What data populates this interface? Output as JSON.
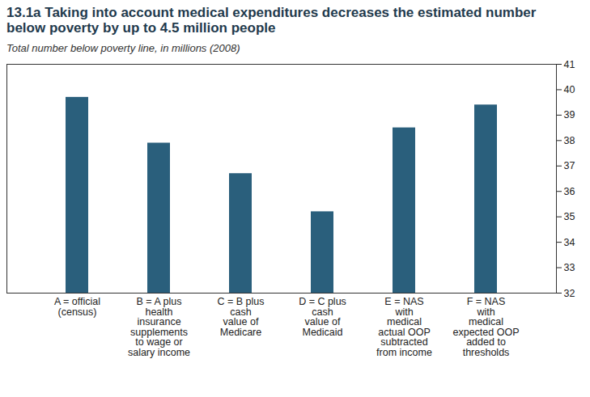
{
  "chart_data": {
    "type": "bar",
    "title": "13.1a Taking into account medical expenditures decreases the estimated number below poverty by up to 4.5 million people",
    "subtitle": "Total number below poverty line, in millions (2008)",
    "categories": [
      "A = official\n(census)",
      "B = A plus\nhealth\ninsurance\nsupplements\nto wage or\nsalary income",
      "C = B plus\ncash\nvalue of\nMedicare",
      "D = C plus\ncash\nvalue of\nMedicaid",
      "E = NAS\nwith\nmedical\nactual OOP\nsubtracted\nfrom income",
      "F = NAS\nwith\nmedical\nexpected OOP\nadded to\nthresholds"
    ],
    "values": [
      39.7,
      37.9,
      36.7,
      35.2,
      38.5,
      39.4
    ],
    "color": "#2a5f7c",
    "ylim": [
      32,
      41
    ],
    "yticks": [
      32,
      33,
      34,
      35,
      36,
      37,
      38,
      39,
      40,
      41
    ],
    "grid": false
  }
}
